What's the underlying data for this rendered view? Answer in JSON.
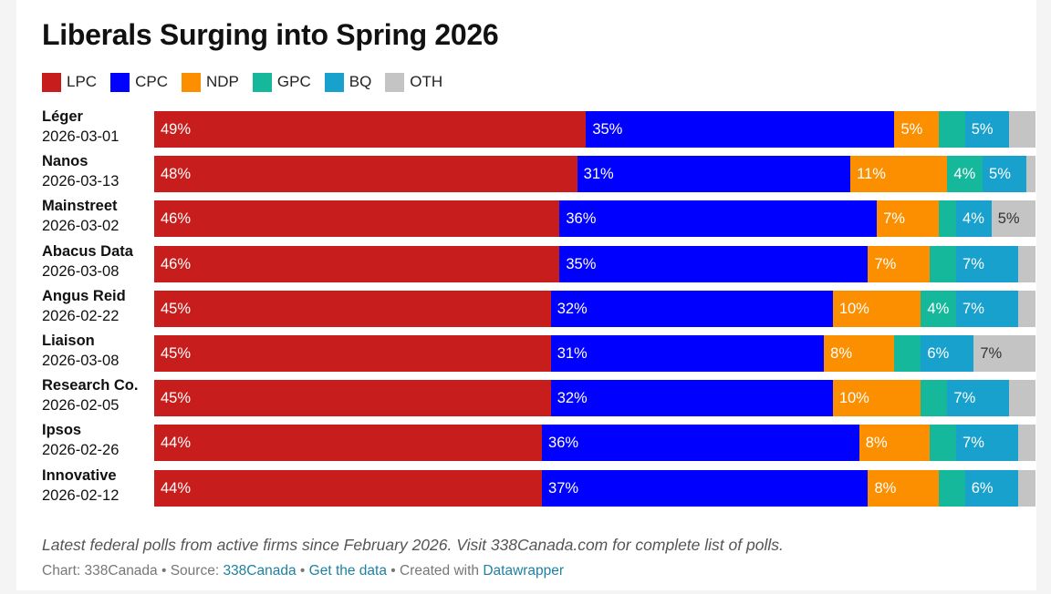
{
  "chart_data": {
    "type": "bar",
    "orientation": "horizontal",
    "stacked": true,
    "title": "Liberals Surging into Spring 2026",
    "xlim": [
      0,
      100
    ],
    "legend_position": "top-left",
    "grid": false,
    "series": [
      {
        "name": "LPC",
        "color": "#c71e1d"
      },
      {
        "name": "CPC",
        "color": "#0000ff"
      },
      {
        "name": "NDP",
        "color": "#fb8f00"
      },
      {
        "name": "GPC",
        "color": "#15b89a"
      },
      {
        "name": "BQ",
        "color": "#18a1cd"
      },
      {
        "name": "OTH",
        "color": "#c4c4c4"
      }
    ],
    "rows": [
      {
        "firm": "Léger",
        "date": "2026-03-01",
        "values": [
          49,
          35,
          5,
          3,
          5,
          3
        ],
        "labels": [
          "49%",
          "35%",
          "5%",
          "",
          "5%",
          ""
        ]
      },
      {
        "firm": "Nanos",
        "date": "2026-03-13",
        "values": [
          48,
          31,
          11,
          4,
          5,
          1
        ],
        "labels": [
          "48%",
          "31%",
          "11%",
          "4%",
          "5%",
          ""
        ]
      },
      {
        "firm": "Mainstreet",
        "date": "2026-03-02",
        "values": [
          46,
          36,
          7,
          2,
          4,
          5
        ],
        "labels": [
          "46%",
          "36%",
          "7%",
          "",
          "4%",
          "5%"
        ]
      },
      {
        "firm": "Abacus Data",
        "date": "2026-03-08",
        "values": [
          46,
          35,
          7,
          3,
          7,
          2
        ],
        "labels": [
          "46%",
          "35%",
          "7%",
          "",
          "7%",
          ""
        ]
      },
      {
        "firm": "Angus Reid",
        "date": "2026-02-22",
        "values": [
          45,
          32,
          10,
          4,
          7,
          2
        ],
        "labels": [
          "45%",
          "32%",
          "10%",
          "4%",
          "7%",
          ""
        ]
      },
      {
        "firm": "Liaison",
        "date": "2026-03-08",
        "values": [
          45,
          31,
          8,
          3,
          6,
          7
        ],
        "labels": [
          "45%",
          "31%",
          "8%",
          "",
          "6%",
          "7%"
        ]
      },
      {
        "firm": "Research Co.",
        "date": "2026-02-05",
        "values": [
          45,
          32,
          10,
          3,
          7,
          3
        ],
        "labels": [
          "45%",
          "32%",
          "10%",
          "",
          "7%",
          ""
        ]
      },
      {
        "firm": "Ipsos",
        "date": "2026-02-26",
        "values": [
          44,
          36,
          8,
          3,
          7,
          2
        ],
        "labels": [
          "44%",
          "36%",
          "8%",
          "",
          "7%",
          ""
        ]
      },
      {
        "firm": "Innovative",
        "date": "2026-02-12",
        "values": [
          44,
          37,
          8,
          3,
          6,
          2
        ],
        "labels": [
          "44%",
          "37%",
          "8%",
          "",
          "6%",
          ""
        ]
      }
    ]
  },
  "caption": "Latest federal polls from active firms since February 2026. Visit 338Canada.com for complete list of polls.",
  "footer": {
    "chart_prefix": "Chart: 338Canada • Source: ",
    "source_link": "338Canada",
    "separator_1": " • ",
    "data_link": "Get the data",
    "created_text": " • Created with ",
    "datawrapper_link": "Datawrapper"
  }
}
